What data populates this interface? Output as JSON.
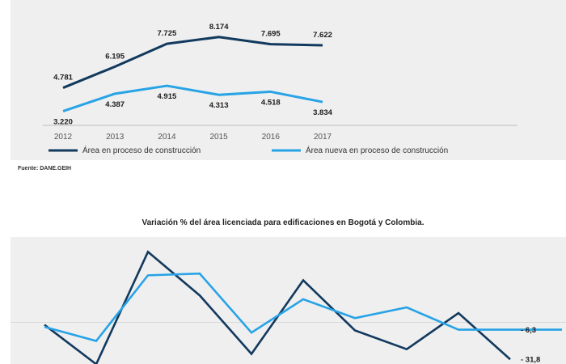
{
  "colors": {
    "dark": "#12395e",
    "light": "#27a3e6",
    "panel": "#efefef",
    "grid": "#d9d9d9"
  },
  "source": "Fuente: DANE.GEIH",
  "chart_data": [
    {
      "type": "line",
      "title": "",
      "categories": [
        "2012",
        "2013",
        "2014",
        "2015",
        "2016",
        "2017"
      ],
      "ylim": [
        2000,
        10000
      ],
      "series": [
        {
          "name": "Área en proceso de construcción",
          "color": "dark",
          "values": [
            4781,
            6195,
            7725,
            8174,
            7695,
            7622
          ],
          "labels": [
            "4.781",
            "6.195",
            "7.725",
            "8.174",
            "7.695",
            "7.622"
          ]
        },
        {
          "name": "Área nueva en proceso de construcción",
          "color": "light",
          "values": [
            3220,
            4387,
            4915,
            4313,
            4518,
            3834
          ],
          "labels": [
            "3.220",
            "4.387",
            "4.915",
            "4.313",
            "4.518",
            "3.834"
          ]
        }
      ],
      "legend": "bottom"
    },
    {
      "type": "line",
      "title": "Variación % del área licenciada para edificaciones en Bogotá y Colombia.",
      "ylim": [
        -40,
        70
      ],
      "x": [
        0,
        1,
        2,
        3,
        4,
        5,
        6,
        7,
        8,
        9,
        10
      ],
      "series": [
        {
          "name": "dark",
          "color": "dark",
          "values": [
            -2.1,
            -36.0,
            60.7,
            23.2,
            -27.1,
            36.2,
            -6.9,
            -23.1,
            8.0,
            -31.8
          ],
          "x": [
            0,
            1,
            2,
            3,
            4,
            5,
            6,
            7,
            8,
            9
          ]
        },
        {
          "name": "light",
          "color": "light",
          "values": [
            -3.9,
            -16.0,
            40.5,
            42.0,
            -8.8,
            19.9,
            3.7,
            12.9,
            -6.3,
            -6.3,
            -6.3
          ],
          "x": [
            0,
            1,
            2,
            3,
            4,
            5,
            6,
            7,
            8,
            9,
            10
          ]
        }
      ],
      "end_labels": [
        "- 6,3",
        "- 31,8"
      ]
    }
  ]
}
